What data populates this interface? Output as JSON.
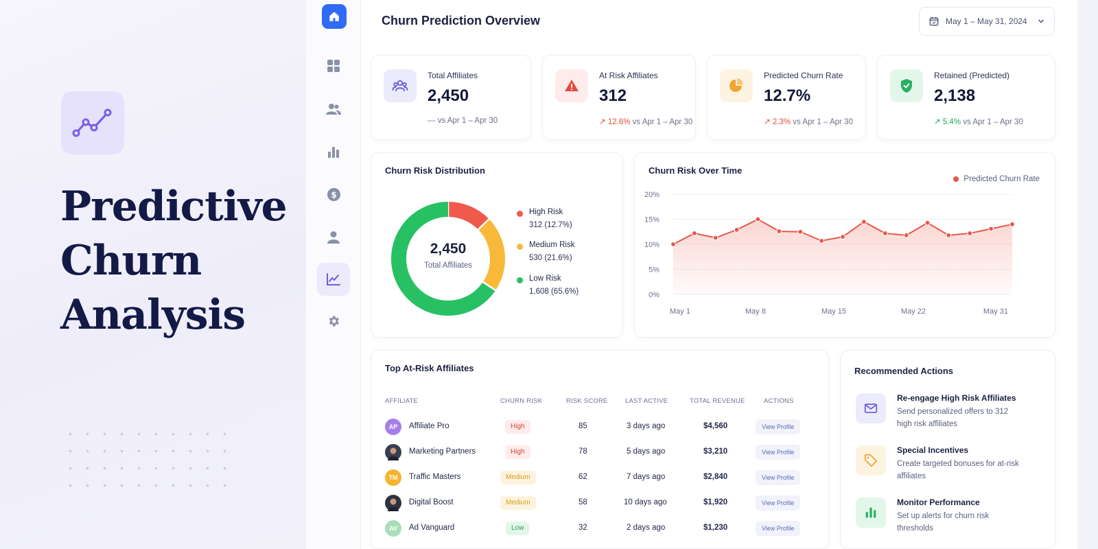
{
  "hero": {
    "title_lines": [
      "Predictive",
      "Churn",
      "Analysis"
    ]
  },
  "nav": {
    "items": [
      {
        "name": "home",
        "icon": "home-icon",
        "active": false
      },
      {
        "name": "dashboard",
        "icon": "grid-icon",
        "active": false
      },
      {
        "name": "users",
        "icon": "users-icon",
        "active": false
      },
      {
        "name": "reports",
        "icon": "bar-chart-icon",
        "active": false
      },
      {
        "name": "revenue",
        "icon": "dollar-icon",
        "active": false
      },
      {
        "name": "profile",
        "icon": "user-icon",
        "active": false
      },
      {
        "name": "analytics",
        "icon": "trend-icon",
        "active": true
      },
      {
        "name": "settings",
        "icon": "gear-icon",
        "active": false
      }
    ]
  },
  "header": {
    "title": "Churn Prediction Overview",
    "date_range": "May 1 – May 31, 2024"
  },
  "kpis": [
    {
      "label": "Total Affiliates",
      "value": "2,450",
      "arrow": "—",
      "pct": "",
      "compare": "vs Apr 1 – Apr 30",
      "trend": "neutral",
      "icon": "users-group-icon",
      "icon_bg": "#ecebfb",
      "icon_color": "#6c5fe0"
    },
    {
      "label": "At Risk Affiliates",
      "value": "312",
      "arrow": "↗",
      "pct": "12.6%",
      "compare": "vs Apr 1 – Apr 30",
      "trend": "up-red",
      "icon": "warning-icon",
      "icon_bg": "#fdeceb",
      "icon_color": "#e14b3b"
    },
    {
      "label": "Predicted Churn Rate",
      "value": "12.7%",
      "arrow": "↗",
      "pct": "2.3%",
      "compare": "vs Apr 1 – Apr 30",
      "trend": "up-red",
      "icon": "pie-chart-icon",
      "icon_bg": "#fdf3e1",
      "icon_color": "#f2a531"
    },
    {
      "label": "Retained (Predicted)",
      "value": "2,138",
      "arrow": "↗",
      "pct": "5.4%",
      "compare": "vs Apr 1 – Apr 30",
      "trend": "up-green",
      "icon": "shield-check-icon",
      "icon_bg": "#e3f6ea",
      "icon_color": "#27b163"
    }
  ],
  "distribution": {
    "title": "Churn Risk Distribution",
    "center_value": "2,450",
    "center_label": "Total Affiliates",
    "segments": [
      {
        "name": "High Risk",
        "value_text": "312 (12.7%)",
        "value": 312,
        "color": "#ef5a4c"
      },
      {
        "name": "Medium Risk",
        "value_text": "530 (21.6%)",
        "value": 530,
        "color": "#f8b93a"
      },
      {
        "name": "Low Risk",
        "value_text": "1,608 (65.6%)",
        "value": 1608,
        "color": "#27c163"
      }
    ]
  },
  "chart_data": {
    "type": "area",
    "title": "Churn Risk Over Time",
    "series": [
      {
        "name": "Predicted Churn Rate",
        "color": "#e5584a",
        "values": [
          10.0,
          12.2,
          11.3,
          12.9,
          15.0,
          12.6,
          12.5,
          10.7,
          11.5,
          14.5,
          12.2,
          11.8,
          14.3,
          11.8,
          12.2,
          13.1,
          14.0
        ]
      }
    ],
    "x_ticks": [
      "May 1",
      "May 8",
      "May 15",
      "May 22",
      "May 31"
    ],
    "y_ticks": [
      "20%",
      "15%",
      "10%",
      "5%",
      "0%"
    ],
    "ylim": [
      0,
      20
    ],
    "grid": true,
    "legend": "top-right"
  },
  "table": {
    "title": "Top At-Risk Affiliates",
    "columns": [
      "Affiliate",
      "Churn Risk",
      "Risk Score",
      "Last Active",
      "Total Revenue",
      "Actions"
    ],
    "action_label": "View Profile",
    "rows": [
      {
        "initials": "AP",
        "avatar_color": "#a77ee8",
        "name": "Affiliate Pro",
        "risk": "High",
        "risk_level": "high",
        "score": "85",
        "last_active": "3 days ago",
        "revenue": "$4,560"
      },
      {
        "initials": "",
        "avatar_color": "#3a3f4f",
        "name": "Marketing Partners",
        "risk": "High",
        "risk_level": "high",
        "score": "78",
        "last_active": "5 days ago",
        "revenue": "$3,210"
      },
      {
        "initials": "TM",
        "avatar_color": "#f6b332",
        "name": "Traffic Masters",
        "risk": "Medium",
        "risk_level": "medium",
        "score": "62",
        "last_active": "7 days ago",
        "revenue": "$2,840"
      },
      {
        "initials": "",
        "avatar_color": "#2e3340",
        "name": "Digital Boost",
        "risk": "Medium",
        "risk_level": "medium",
        "score": "58",
        "last_active": "10 days ago",
        "revenue": "$1,920"
      },
      {
        "initials": "AV",
        "avatar_color": "#a9dfb8",
        "name": "Ad Vanguard",
        "risk": "Low",
        "risk_level": "low",
        "score": "32",
        "last_active": "2 days ago",
        "revenue": "$1,230"
      }
    ]
  },
  "actions": {
    "title": "Recommended Actions",
    "items": [
      {
        "title": "Re-engage High Risk Affiliates",
        "desc": "Send personalized offers to 312 high risk affiliates",
        "icon": "mail-icon",
        "icon_bg": "#ecebfb",
        "icon_color": "#6c5fe0"
      },
      {
        "title": "Special Incentives",
        "desc": "Create targeted bonuses for at-risk affiliates",
        "icon": "tag-icon",
        "icon_bg": "#fdf3e1",
        "icon_color": "#f2a531"
      },
      {
        "title": "Monitor Performance",
        "desc": "Set up alerts for churn risk thresholds",
        "icon": "bar-chart-icon",
        "icon_bg": "#e3f6ea",
        "icon_color": "#27b163"
      }
    ]
  }
}
